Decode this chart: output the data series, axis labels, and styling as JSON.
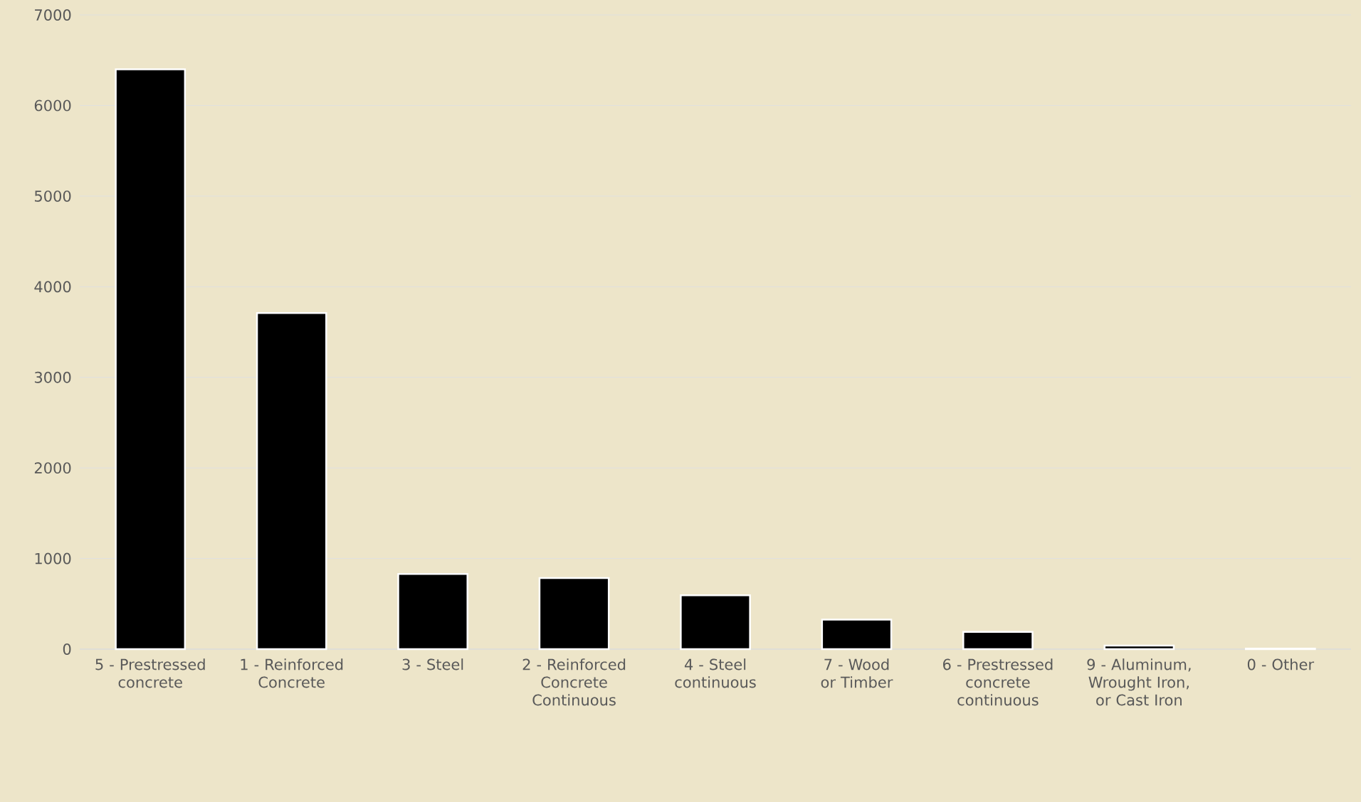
{
  "chart_data": {
    "type": "bar",
    "categories": [
      "5 - Prestressed concrete",
      "1 - Reinforced Concrete",
      "3 - Steel",
      "2 - Reinforced Concrete Continuous",
      "4 - Steel continuous",
      "7 - Wood or Timber",
      "6 - Prestressed concrete continuous",
      "9 - Aluminum, Wrought Iron, or Cast Iron",
      "0 - Other"
    ],
    "values": [
      6400,
      3710,
      830,
      785,
      595,
      325,
      190,
      40,
      5
    ],
    "color": "#000000",
    "ylim": [
      0,
      7000
    ],
    "yticks": [
      0,
      1000,
      2000,
      3000,
      4000,
      5000,
      6000,
      7000
    ],
    "grid": "y"
  }
}
